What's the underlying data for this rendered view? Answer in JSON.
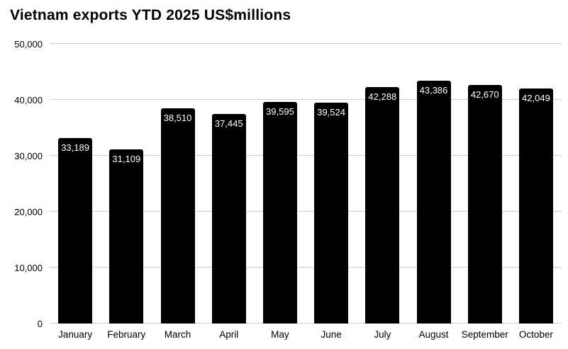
{
  "chart_data": {
    "type": "bar",
    "title": "Vietnam exports YTD 2025 US$millions",
    "categories": [
      "January",
      "February",
      "March",
      "April",
      "May",
      "June",
      "July",
      "August",
      "September",
      "October"
    ],
    "values": [
      33189,
      31109,
      38510,
      37445,
      39595,
      39524,
      42288,
      43386,
      42670,
      42049
    ],
    "value_labels": [
      "33,189",
      "31,109",
      "38,510",
      "37,445",
      "39,595",
      "39,524",
      "42,288",
      "43,386",
      "42,670",
      "42,049"
    ],
    "xlabel": "",
    "ylabel": "",
    "ylim": [
      0,
      50000
    ],
    "yticks": [
      0,
      10000,
      20000,
      30000,
      40000,
      50000
    ],
    "ytick_labels": [
      "0",
      "10,000",
      "20,000",
      "30,000",
      "40,000",
      "50,000"
    ],
    "grid": true,
    "legend": "none",
    "colors": {
      "bar": "#000000",
      "bar_label": "#ffffff",
      "gridline": "#cccccc",
      "axis_text": "#000000",
      "background": "#ffffff"
    }
  }
}
